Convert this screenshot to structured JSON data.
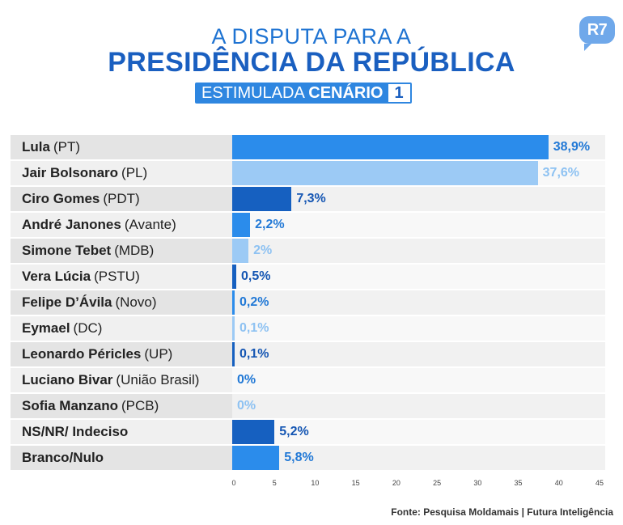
{
  "header": {
    "title_line1": "A DISPUTA PARA A",
    "title_line2": "PRESIDÊNCIA DA REPÚBLICA",
    "subtitle_plain": "ESTIMULADA",
    "subtitle_bold": "CENÁRIO",
    "subtitle_number": "1",
    "logo_text": "R7"
  },
  "chart_data": {
    "type": "bar",
    "orientation": "horizontal",
    "title": "A DISPUTA PARA A PRESIDÊNCIA DA REPÚBLICA — ESTIMULADA CENÁRIO 1",
    "xlim": [
      0,
      45
    ],
    "xticks": [
      0,
      5,
      10,
      15,
      20,
      25,
      30,
      35,
      40,
      45
    ],
    "categories": [
      {
        "name": "Lula",
        "party": "(PT)",
        "value": 38.9,
        "label": "38,9%",
        "color": "#2b8ceb",
        "label_color": "#2279d6"
      },
      {
        "name": "Jair Bolsonaro",
        "party": "(PL)",
        "value": 37.6,
        "label": "37,6%",
        "color": "#9ccaf5",
        "label_color": "#8ec2f2"
      },
      {
        "name": "Ciro Gomes",
        "party": "(PDT)",
        "value": 7.3,
        "label": "7,3%",
        "color": "#1660c0",
        "label_color": "#1556b3"
      },
      {
        "name": "André Janones",
        "party": "(Avante)",
        "value": 2.2,
        "label": "2,2%",
        "color": "#2b8ceb",
        "label_color": "#2279d6"
      },
      {
        "name": "Simone Tebet",
        "party": "(MDB)",
        "value": 2,
        "label": "2%",
        "color": "#9ccaf5",
        "label_color": "#8ec2f2"
      },
      {
        "name": "Vera Lúcia",
        "party": "(PSTU)",
        "value": 0.5,
        "label": "0,5%",
        "color": "#1660c0",
        "label_color": "#1556b3"
      },
      {
        "name": "Felipe D’Ávila",
        "party": "(Novo)",
        "value": 0.2,
        "label": "0,2%",
        "color": "#2b8ceb",
        "label_color": "#2279d6"
      },
      {
        "name": "Eymael",
        "party": "(DC)",
        "value": 0.1,
        "label": "0,1%",
        "color": "#9ccaf5",
        "label_color": "#8ec2f2"
      },
      {
        "name": "Leonardo Péricles",
        "party": "(UP)",
        "value": 0.1,
        "label": "0,1%",
        "color": "#1660c0",
        "label_color": "#1556b3"
      },
      {
        "name": "Luciano Bivar",
        "party": "(União Brasil)",
        "value": 0,
        "label": "0%",
        "color": "#2b8ceb",
        "label_color": "#2279d6"
      },
      {
        "name": "Sofia Manzano",
        "party": "(PCB)",
        "value": 0,
        "label": "0%",
        "color": "#9ccaf5",
        "label_color": "#8ec2f2"
      },
      {
        "name": "NS/NR/ Indeciso",
        "party": "",
        "value": 5.2,
        "label": "5,2%",
        "color": "#1660c0",
        "label_color": "#1556b3"
      },
      {
        "name": "Branco/Nulo",
        "party": "",
        "value": 5.8,
        "label": "5,8%",
        "color": "#2b8ceb",
        "label_color": "#2279d6"
      }
    ]
  },
  "footer": {
    "source": "Fonte: Pesquisa Moldamais | Futura Inteligência"
  }
}
